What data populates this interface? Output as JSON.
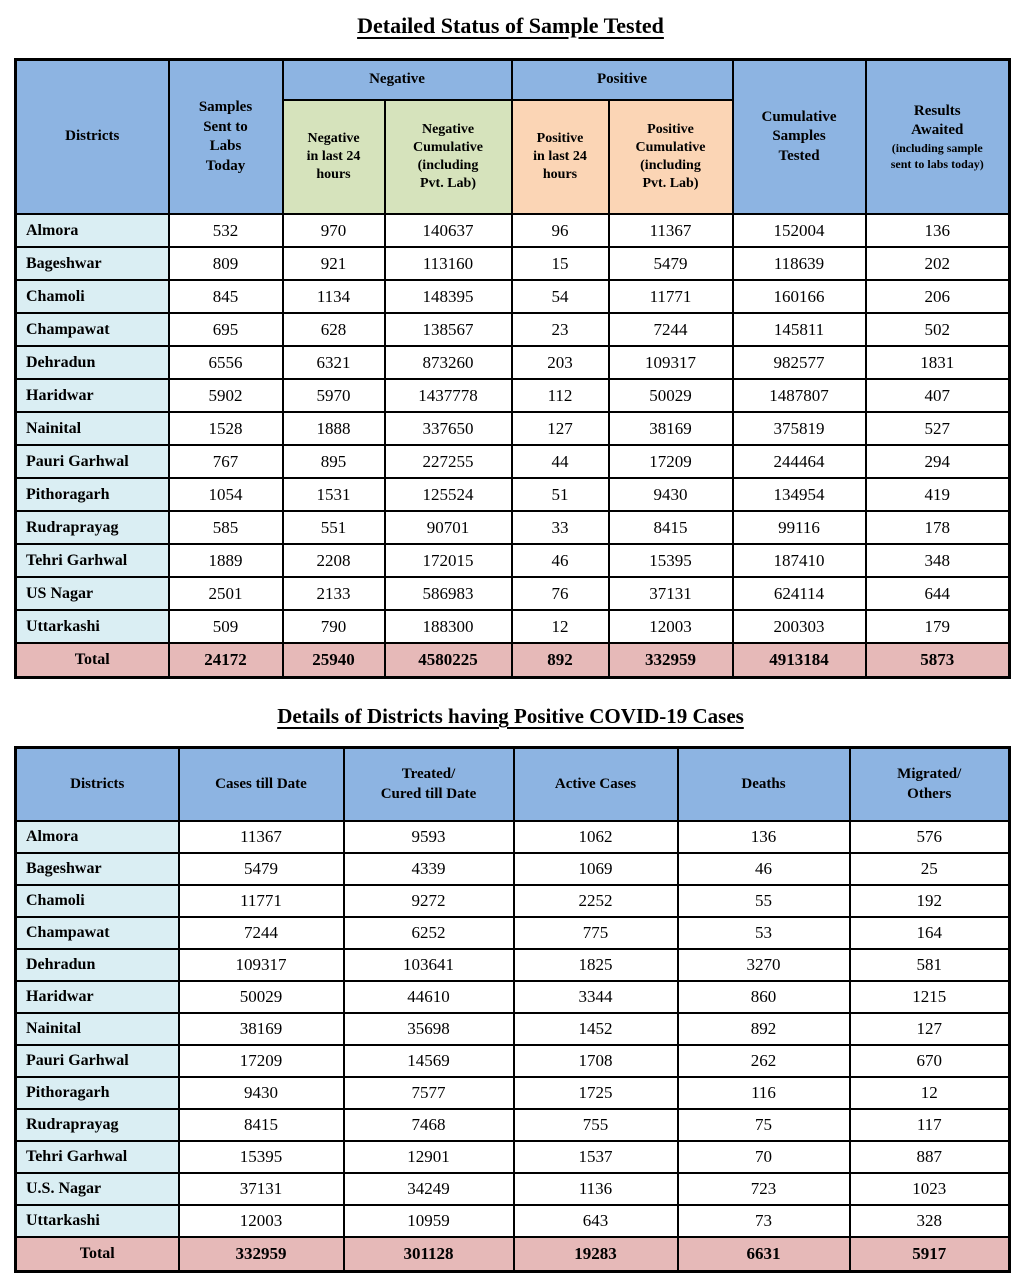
{
  "colors": {
    "page_bg": "#ffffff",
    "header_blue": "#8db4e2",
    "district_blue": "#daeef3",
    "negative_green": "#d6e3bc",
    "positive_peach": "#fbd5b5",
    "total_pink": "#e6b9b8",
    "border_black": "#000000"
  },
  "table1": {
    "title": "Detailed Status of Sample Tested",
    "headers": {
      "districts": "Districts",
      "samples_sent": "Samples\nSent to\nLabs\nToday",
      "negative_group": "Negative",
      "positive_group": "Positive",
      "negative_24h": "Negative\nin last 24\nhours",
      "negative_cumulative": "Negative\nCumulative\n(including\nPvt. Lab)",
      "positive_24h": "Positive\nin last 24\nhours",
      "positive_cumulative": "Positive\nCumulative\n(including\nPvt. Lab)",
      "cumulative_samples": "Cumulative\nSamples\nTested",
      "results_awaited": "Results\nAwaited",
      "results_awaited_note": "(including sample\nsent to labs today)"
    },
    "rows": [
      {
        "district": "Almora",
        "values": [
          "532",
          "970",
          "140637",
          "96",
          "11367",
          "152004",
          "136"
        ]
      },
      {
        "district": "Bageshwar",
        "values": [
          "809",
          "921",
          "113160",
          "15",
          "5479",
          "118639",
          "202"
        ]
      },
      {
        "district": "Chamoli",
        "values": [
          "845",
          "1134",
          "148395",
          "54",
          "11771",
          "160166",
          "206"
        ]
      },
      {
        "district": "Champawat",
        "values": [
          "695",
          "628",
          "138567",
          "23",
          "7244",
          "145811",
          "502"
        ]
      },
      {
        "district": "Dehradun",
        "values": [
          "6556",
          "6321",
          "873260",
          "203",
          "109317",
          "982577",
          "1831"
        ]
      },
      {
        "district": "Haridwar",
        "values": [
          "5902",
          "5970",
          "1437778",
          "112",
          "50029",
          "1487807",
          "407"
        ]
      },
      {
        "district": "Nainital",
        "values": [
          "1528",
          "1888",
          "337650",
          "127",
          "38169",
          "375819",
          "527"
        ]
      },
      {
        "district": "Pauri Garhwal",
        "values": [
          "767",
          "895",
          "227255",
          "44",
          "17209",
          "244464",
          "294"
        ]
      },
      {
        "district": "Pithoragarh",
        "values": [
          "1054",
          "1531",
          "125524",
          "51",
          "9430",
          "134954",
          "419"
        ]
      },
      {
        "district": "Rudraprayag",
        "values": [
          "585",
          "551",
          "90701",
          "33",
          "8415",
          "99116",
          "178"
        ]
      },
      {
        "district": "Tehri Garhwal",
        "values": [
          "1889",
          "2208",
          "172015",
          "46",
          "15395",
          "187410",
          "348"
        ]
      },
      {
        "district": "US Nagar",
        "values": [
          "2501",
          "2133",
          "586983",
          "76",
          "37131",
          "624114",
          "644"
        ]
      },
      {
        "district": "Uttarkashi",
        "values": [
          "509",
          "790",
          "188300",
          "12",
          "12003",
          "200303",
          "179"
        ]
      }
    ],
    "total": {
      "label": "Total",
      "values": [
        "24172",
        "25940",
        "4580225",
        "892",
        "332959",
        "4913184",
        "5873"
      ]
    }
  },
  "table2": {
    "title": "Details of Districts having Positive COVID-19 Cases",
    "headers": {
      "districts": "Districts",
      "cases": "Cases till Date",
      "treated": "Treated/\nCured till Date",
      "active": "Active Cases",
      "deaths": "Deaths",
      "migrated": "Migrated/\nOthers"
    },
    "rows": [
      {
        "district": "Almora",
        "values": [
          "11367",
          "9593",
          "1062",
          "136",
          "576"
        ]
      },
      {
        "district": "Bageshwar",
        "values": [
          "5479",
          "4339",
          "1069",
          "46",
          "25"
        ]
      },
      {
        "district": "Chamoli",
        "values": [
          "11771",
          "9272",
          "2252",
          "55",
          "192"
        ]
      },
      {
        "district": "Champawat",
        "values": [
          "7244",
          "6252",
          "775",
          "53",
          "164"
        ]
      },
      {
        "district": "Dehradun",
        "values": [
          "109317",
          "103641",
          "1825",
          "3270",
          "581"
        ]
      },
      {
        "district": "Haridwar",
        "values": [
          "50029",
          "44610",
          "3344",
          "860",
          "1215"
        ]
      },
      {
        "district": "Nainital",
        "values": [
          "38169",
          "35698",
          "1452",
          "892",
          "127"
        ]
      },
      {
        "district": "Pauri Garhwal",
        "values": [
          "17209",
          "14569",
          "1708",
          "262",
          "670"
        ]
      },
      {
        "district": "Pithoragarh",
        "values": [
          "9430",
          "7577",
          "1725",
          "116",
          "12"
        ]
      },
      {
        "district": "Rudraprayag",
        "values": [
          "8415",
          "7468",
          "755",
          "75",
          "117"
        ]
      },
      {
        "district": "Tehri Garhwal",
        "values": [
          "15395",
          "12901",
          "1537",
          "70",
          "887"
        ]
      },
      {
        "district": "U.S. Nagar",
        "values": [
          "37131",
          "34249",
          "1136",
          "723",
          "1023"
        ]
      },
      {
        "district": "Uttarkashi",
        "values": [
          "12003",
          "10959",
          "643",
          "73",
          "328"
        ]
      }
    ],
    "total": {
      "label": "Total",
      "values": [
        "332959",
        "301128",
        "19283",
        "6631",
        "5917"
      ]
    }
  }
}
